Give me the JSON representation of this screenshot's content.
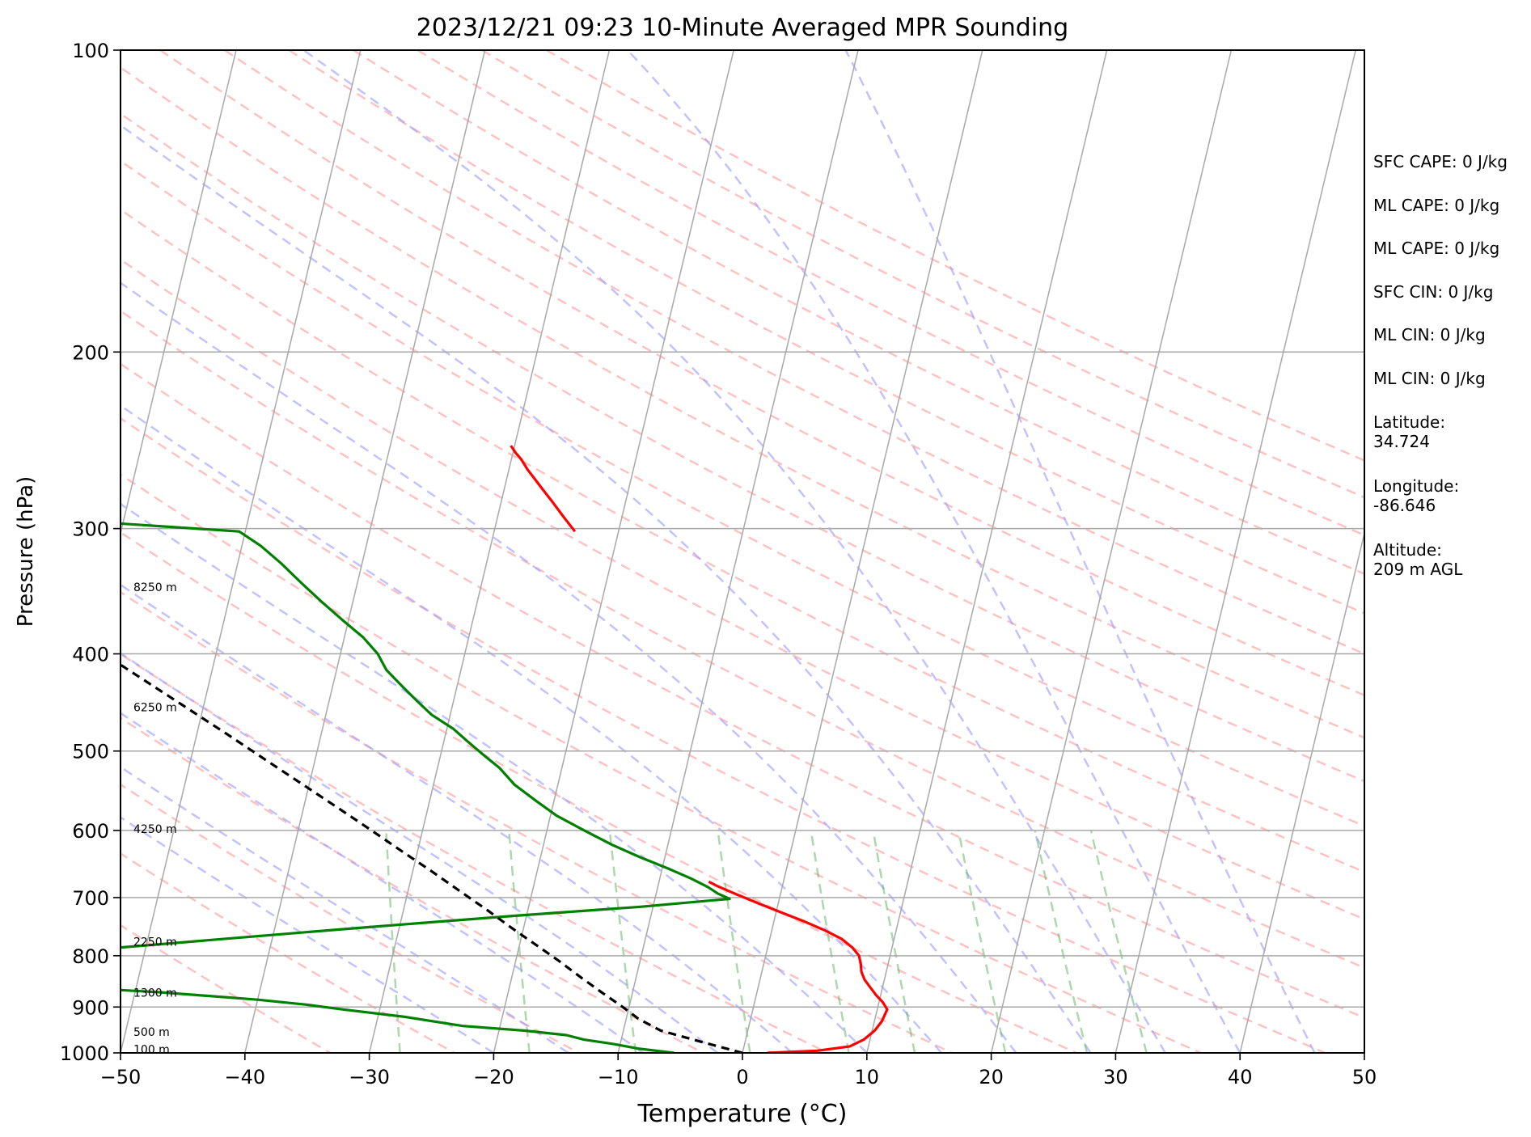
{
  "chart_data": {
    "type": "line",
    "title": "2023/12/21 09:23 10-Minute Averaged MPR Sounding",
    "xlabel": "Temperature (°C)",
    "ylabel": "Pressure (hPa)",
    "xlim": [
      -50,
      50
    ],
    "ylim": [
      1000,
      100
    ],
    "y_scale": "log",
    "skew": "skew-T log-p",
    "grid": true,
    "x_ticks": [
      "−50",
      "−40",
      "−30",
      "−20",
      "−10",
      "0",
      "10",
      "20",
      "30",
      "40",
      "50"
    ],
    "x_tick_values": [
      -50,
      -40,
      -30,
      -20,
      -10,
      0,
      10,
      20,
      30,
      40,
      50
    ],
    "y_ticks": [
      "100",
      "200",
      "300",
      "400",
      "500",
      "600",
      "700",
      "800",
      "900",
      "1000"
    ],
    "y_tick_values": [
      100,
      200,
      300,
      400,
      500,
      600,
      700,
      800,
      900,
      1000
    ],
    "height_labels": [
      {
        "text": "8250 m",
        "p": 343
      },
      {
        "text": "6250 m",
        "p": 452
      },
      {
        "text": "4250 m",
        "p": 598
      },
      {
        "text": "2250 m",
        "p": 775
      },
      {
        "text": "1300 m",
        "p": 871
      },
      {
        "text": "500 m",
        "p": 953
      },
      {
        "text": "100 m",
        "p": 992
      }
    ],
    "series": [
      {
        "color": "#ff0000",
        "points": [
          [
            1000,
            2
          ],
          [
            995,
            6
          ],
          [
            985,
            8.5
          ],
          [
            970,
            9.5
          ],
          [
            950,
            10.2
          ],
          [
            930,
            10.6
          ],
          [
            905,
            10.8
          ],
          [
            890,
            10.3
          ],
          [
            875,
            9.6
          ],
          [
            860,
            9.0
          ],
          [
            845,
            8.4
          ],
          [
            830,
            8.0
          ],
          [
            815,
            7.8
          ],
          [
            800,
            7.5
          ],
          [
            785,
            6.8
          ],
          [
            770,
            5.8
          ],
          [
            755,
            4.3
          ],
          [
            740,
            2.5
          ],
          [
            725,
            0.5
          ],
          [
            710,
            -1.5
          ],
          [
            695,
            -3.5
          ],
          [
            682,
            -5.2
          ],
          [
            675,
            -6.0
          ]
        ],
        "upper_points": [
          [
            302,
            -23.5
          ],
          [
            292,
            -24.7
          ],
          [
            282,
            -25.9
          ],
          [
            275,
            -26.8
          ],
          [
            268,
            -27.7
          ],
          [
            262,
            -28.5
          ],
          [
            256,
            -29.2
          ],
          [
            252,
            -29.8
          ],
          [
            248,
            -30.3
          ]
        ]
      },
      {
        "color": "#008000",
        "points": [
          [
            1000,
            -5.5
          ],
          [
            990,
            -8.5
          ],
          [
            980,
            -10.5
          ],
          [
            970,
            -13
          ],
          [
            960,
            -14.5
          ],
          [
            950,
            -18
          ],
          [
            940,
            -23
          ],
          [
            920,
            -28
          ],
          [
            905,
            -33
          ],
          [
            895,
            -36
          ],
          [
            885,
            -40
          ],
          [
            870,
            -48
          ],
          [
            858,
            -57
          ],
          [
            848,
            -58
          ],
          [
            835,
            -52
          ],
          [
            820,
            -57
          ],
          [
            806,
            -61
          ],
          [
            795,
            -57
          ],
          [
            785,
            -52
          ],
          [
            770,
            -44
          ],
          [
            750,
            -33
          ],
          [
            730,
            -21
          ],
          [
            715,
            -11
          ],
          [
            702,
            -4
          ],
          [
            694,
            -5
          ],
          [
            683,
            -6
          ],
          [
            670,
            -7.5
          ],
          [
            655,
            -9.5
          ],
          [
            638,
            -12
          ],
          [
            620,
            -14.5
          ],
          [
            600,
            -17
          ],
          [
            580,
            -19.5
          ],
          [
            560,
            -21.5
          ],
          [
            540,
            -23.5
          ],
          [
            520,
            -25
          ],
          [
            505,
            -26.5
          ],
          [
            490,
            -28
          ],
          [
            475,
            -29.5
          ],
          [
            460,
            -31.5
          ],
          [
            445,
            -33
          ],
          [
            430,
            -34.5
          ],
          [
            415,
            -36
          ],
          [
            400,
            -37
          ],
          [
            385,
            -38.5
          ],
          [
            370,
            -40.5
          ],
          [
            355,
            -42.5
          ],
          [
            340,
            -44.5
          ],
          [
            325,
            -46.5
          ],
          [
            312,
            -48.5
          ],
          [
            302,
            -50.5
          ],
          [
            295,
            -63
          ],
          [
            292,
            -75
          ],
          [
            290,
            -90
          ],
          [
            287,
            -110
          ]
        ]
      },
      {
        "color": "#000000",
        "style": "dashed",
        "points": [
          [
            1000,
            0
          ],
          [
            975,
            -3.5
          ],
          [
            950,
            -7
          ],
          [
            925,
            -9
          ],
          [
            900,
            -10.5
          ],
          [
            870,
            -12.5
          ],
          [
            840,
            -14.5
          ],
          [
            810,
            -16.5
          ],
          [
            780,
            -18.7
          ],
          [
            750,
            -21
          ],
          [
            720,
            -23.3
          ],
          [
            690,
            -25.8
          ],
          [
            660,
            -28.4
          ],
          [
            630,
            -31.2
          ],
          [
            600,
            -34.1
          ],
          [
            570,
            -37.2
          ],
          [
            540,
            -40.5
          ],
          [
            510,
            -44
          ],
          [
            480,
            -47.7
          ],
          [
            450,
            -51.7
          ],
          [
            420,
            -56
          ],
          [
            390,
            -60.6
          ],
          [
            360,
            -65.6
          ],
          [
            330,
            -71
          ],
          [
            303,
            -76.4
          ]
        ]
      }
    ],
    "info": [
      "SFC CAPE: 0 J/kg",
      "ML CAPE: 0 J/kg",
      "ML CAPE: 0 J/kg",
      "SFC CIN: 0 J/kg",
      "ML CIN: 0 J/kg",
      "ML CIN: 0 J/kg",
      "Latitude:\n34.724",
      "Longitude:\n-86.646",
      "Altitude:\n209 m AGL"
    ]
  }
}
